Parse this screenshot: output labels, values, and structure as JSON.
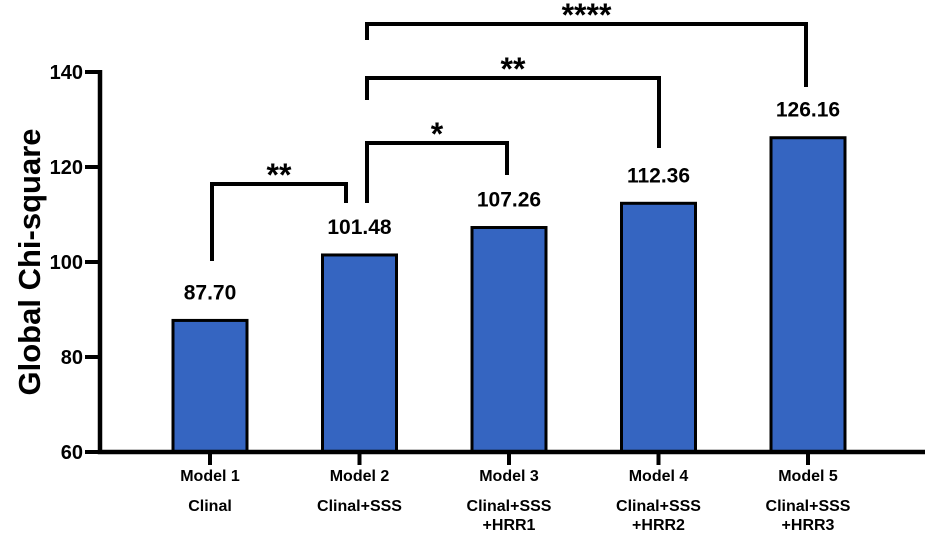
{
  "figure": {
    "background": "#ffffff",
    "text_color": "#000000"
  },
  "chart_data": {
    "type": "bar",
    "title": "",
    "xlabel": "",
    "ylabel": "Global Chi-square",
    "ylim": [
      60,
      140
    ],
    "yticks": [
      60,
      80,
      100,
      120,
      140
    ],
    "grid": false,
    "legend": null,
    "categories": [
      {
        "line1": "Model 1",
        "line2": "Clinal",
        "line3": ""
      },
      {
        "line1": "Model 2",
        "line2": "Clinal+SSS",
        "line3": ""
      },
      {
        "line1": "Model 3",
        "line2": "Clinal+SSS",
        "line3": "+HRR1"
      },
      {
        "line1": "Model 4",
        "line2": "Clinal+SSS",
        "line3": "+HRR2"
      },
      {
        "line1": "Model 5",
        "line2": "Clinal+SSS",
        "line3": "+HRR3"
      }
    ],
    "values": [
      87.7,
      101.48,
      107.26,
      112.36,
      126.16
    ],
    "value_labels": [
      "87.70",
      "101.48",
      "107.26",
      "112.36",
      "126.16"
    ],
    "bar_color": "#3565C1",
    "bar_outline": "#000000",
    "axis_color": "#000000",
    "significance_brackets": [
      {
        "from": "Model 1",
        "to": "Model 2",
        "label": "**"
      },
      {
        "from": "Model 2",
        "to": "Model 3",
        "label": "*"
      },
      {
        "from": "Model 2",
        "to": "Model 4",
        "label": "**"
      },
      {
        "from": "Model 2",
        "to": "Model 5",
        "label": "****"
      }
    ]
  }
}
